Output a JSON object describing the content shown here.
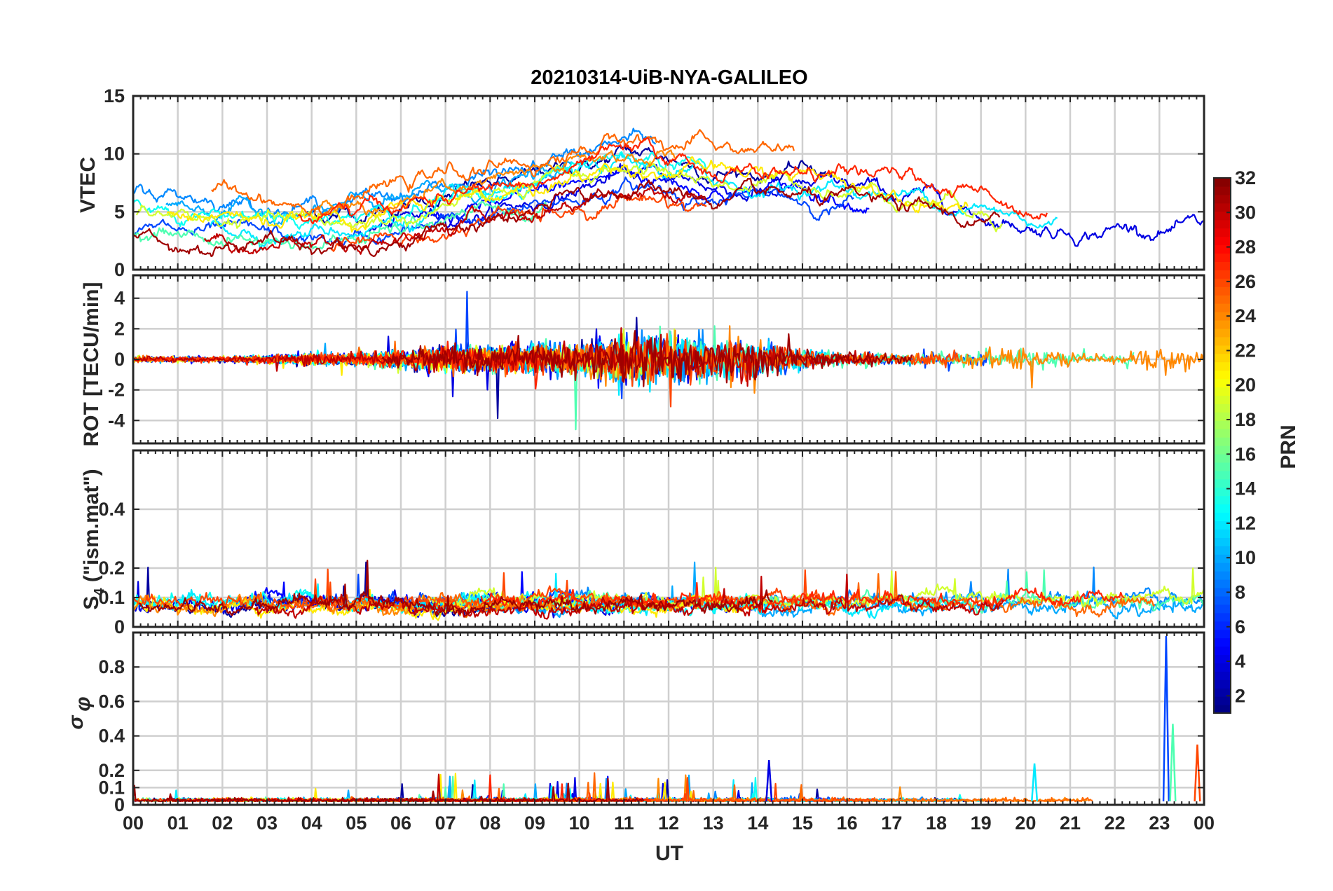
{
  "chart_data": {
    "type": "line",
    "title": "20210314-UiB-NYA-GALILEO",
    "xlabel": "UT",
    "x_tick_labels": [
      "00",
      "01",
      "02",
      "03",
      "04",
      "05",
      "06",
      "07",
      "08",
      "09",
      "10",
      "11",
      "12",
      "13",
      "14",
      "15",
      "16",
      "17",
      "18",
      "19",
      "20",
      "21",
      "22",
      "23",
      "00"
    ],
    "x_range_hours": [
      0,
      24
    ],
    "grid": true,
    "colorbar": {
      "label": "PRN",
      "colormap": "jet",
      "range": [
        1,
        32
      ],
      "tick_labels": [
        "2",
        "4",
        "6",
        "8",
        "10",
        "12",
        "14",
        "16",
        "18",
        "20",
        "22",
        "24",
        "26",
        "28",
        "30",
        "32"
      ],
      "placement": "right"
    },
    "panels": [
      {
        "id": "vtec",
        "ylabel": "VTEC",
        "ylim": [
          0,
          15
        ],
        "y_tick_labels": [
          "0",
          "5",
          "10",
          "15"
        ],
        "profile": {
          "hours": [
            0,
            1,
            2,
            3,
            4,
            5,
            6,
            7,
            8,
            9,
            10,
            11,
            12,
            13,
            14,
            15,
            16,
            17,
            18,
            19,
            20,
            21,
            22,
            23,
            24
          ],
          "values": [
            4.6,
            4.3,
            4.0,
            3.7,
            3.5,
            3.8,
            4.4,
            5.2,
            5.8,
            6.3,
            7.6,
            8.6,
            8.3,
            7.6,
            7.3,
            7.4,
            7.1,
            6.6,
            6.3,
            5.4,
            4.6,
            4.2,
            4.3,
            4.4,
            3.6
          ]
        },
        "spread": 1.3,
        "noise": 0.5
      },
      {
        "id": "rot",
        "ylabel": "ROT [TECU/min]",
        "ylim": [
          -5.5,
          5.5
        ],
        "y_tick_labels": [
          "-4",
          "-2",
          "0",
          "2",
          "4"
        ],
        "activity": {
          "hours": [
            0,
            1,
            2,
            3,
            4,
            5,
            6,
            7,
            8,
            9,
            10,
            11,
            12,
            13,
            14,
            15,
            16,
            17,
            18,
            19,
            20,
            21,
            22,
            23,
            24
          ],
          "values": [
            0.15,
            0.15,
            0.12,
            0.2,
            0.3,
            0.3,
            0.45,
            0.7,
            0.6,
            0.8,
            0.75,
            1.4,
            1.3,
            1.1,
            1.1,
            0.45,
            0.35,
            0.3,
            0.35,
            0.45,
            0.45,
            0.35,
            0.25,
            0.8,
            0.4
          ]
        }
      },
      {
        "id": "s4",
        "ylabel": "S4 (\"ism.mat\")",
        "ylabel_main": "S",
        "ylabel_sub": "4",
        "ylabel_rest": " (\"ism.mat\")",
        "ylim": [
          0,
          0.6
        ],
        "y_tick_labels": [
          "0",
          "0.1",
          "0.2",
          "0.4"
        ],
        "baseline": 0.06,
        "noise": 0.02
      },
      {
        "id": "sigphi",
        "ylabel": "σφ",
        "ylabel_main": "σ",
        "ylabel_sub": "φ",
        "ylim": [
          0,
          1.0
        ],
        "y_tick_labels": [
          "0",
          "0.1",
          "0.2",
          "0.4",
          "0.6",
          "0.8"
        ],
        "baseline": 0.02,
        "notable_peaks": [
          {
            "hour": 23.15,
            "value": 0.98
          },
          {
            "hour": 23.3,
            "value": 0.47
          },
          {
            "hour": 23.85,
            "value": 0.35
          },
          {
            "hour": 14.25,
            "value": 0.26
          },
          {
            "hour": 20.2,
            "value": 0.24
          }
        ]
      }
    ],
    "series_prns": [
      2,
      4,
      5,
      7,
      9,
      10,
      12,
      13,
      15,
      19,
      21,
      24,
      25,
      26,
      27,
      30,
      31
    ]
  }
}
